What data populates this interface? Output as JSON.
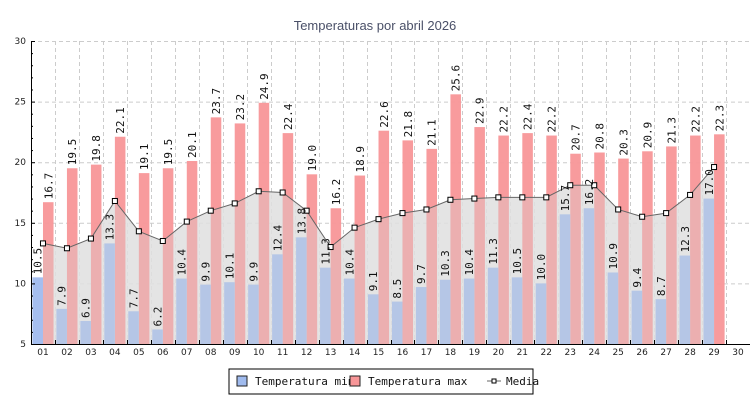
{
  "chart_data": {
    "type": "bar",
    "title": "Temperaturas por abril 2026",
    "xlabel": "",
    "ylabel": "",
    "ylim": [
      5,
      30
    ],
    "yticks": [
      5,
      10,
      15,
      20,
      25,
      30
    ],
    "grid": true,
    "legend_position": "bottom-center",
    "categories": [
      "01",
      "02",
      "03",
      "04",
      "05",
      "06",
      "07",
      "08",
      "09",
      "10",
      "11",
      "12",
      "13",
      "14",
      "15",
      "16",
      "17",
      "18",
      "19",
      "20",
      "21",
      "22",
      "23",
      "24",
      "25",
      "26",
      "27",
      "28",
      "29",
      "30"
    ],
    "series": [
      {
        "name": "Temperatura min",
        "type": "bar",
        "color": "#a0bbee",
        "values": [
          10.5,
          7.9,
          6.9,
          13.3,
          7.7,
          6.2,
          10.4,
          9.9,
          10.1,
          9.9,
          12.4,
          13.8,
          11.3,
          10.4,
          9.1,
          8.5,
          9.7,
          10.3,
          10.4,
          11.3,
          10.5,
          10.0,
          15.7,
          16.2,
          10.9,
          9.4,
          8.7,
          12.3,
          17.0,
          null
        ],
        "labels": [
          "10.5",
          "7.9",
          "6.9",
          "13.3",
          "7.7",
          "6.2",
          "10.4",
          "9.9",
          "10.1",
          "9.9",
          "12.4",
          "13.8",
          "11.3",
          "10.4",
          "9.1",
          "8.5",
          "9.7",
          "10.3",
          "10.4",
          "11.3",
          "10.5",
          "10.0",
          "15.7",
          "16.2",
          "10.9",
          "9.4",
          "8.7",
          "12.3",
          "17.0",
          ""
        ]
      },
      {
        "name": "Temperatura max",
        "type": "bar",
        "color": "#f89698",
        "values": [
          16.7,
          19.5,
          19.8,
          22.1,
          19.1,
          19.5,
          20.1,
          23.7,
          23.2,
          24.9,
          22.4,
          19.0,
          16.2,
          18.9,
          22.6,
          21.8,
          21.1,
          25.6,
          22.9,
          22.2,
          22.4,
          22.2,
          20.7,
          20.8,
          20.3,
          20.9,
          21.3,
          22.2,
          22.3,
          null
        ],
        "labels": [
          "16.7",
          "19.5",
          "19.8",
          "22.1",
          "19.1",
          "19.5",
          "20.1",
          "23.7",
          "23.2",
          "24.9",
          "22.4",
          "19.0",
          "16.2",
          "18.9",
          "22.6",
          "21.8",
          "21.1",
          "25.6",
          "22.9",
          "22.2",
          "22.4",
          "22.2",
          "20.7",
          "20.8",
          "20.3",
          "20.9",
          "21.3",
          "22.2",
          "22.3",
          ""
        ]
      },
      {
        "name": "Media",
        "type": "line",
        "color": "#666666",
        "values": [
          13.3,
          12.9,
          13.7,
          16.8,
          14.3,
          13.5,
          15.1,
          16.0,
          16.6,
          17.6,
          17.5,
          16.0,
          13.0,
          14.6,
          15.3,
          15.8,
          16.1,
          16.9,
          17.0,
          17.1,
          17.1,
          17.1,
          18.1,
          18.1,
          16.1,
          15.5,
          15.8,
          17.3,
          19.6,
          null
        ]
      }
    ]
  }
}
